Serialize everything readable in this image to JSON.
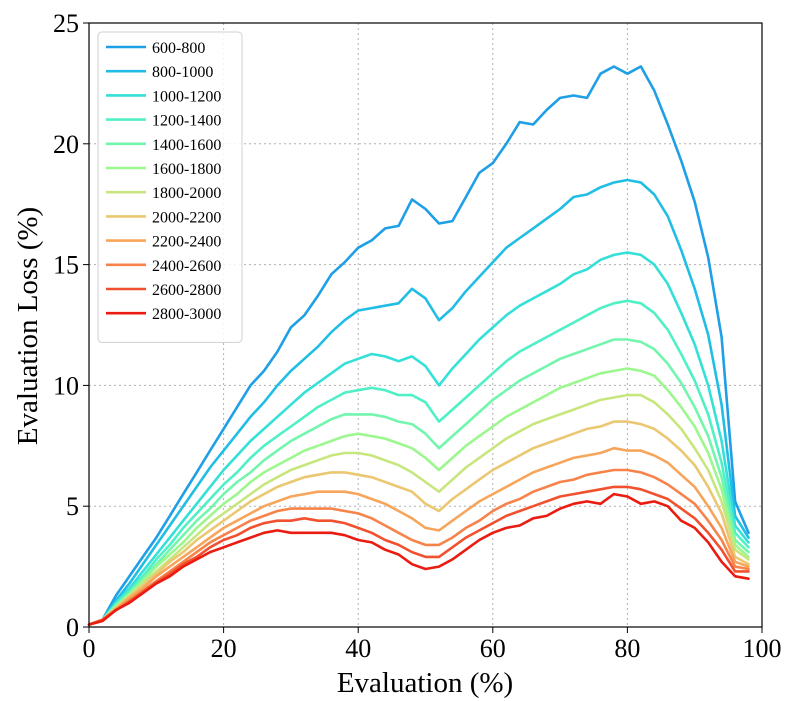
{
  "chart_data": {
    "type": "line",
    "xlabel": "Evaluation (%)",
    "ylabel": "Evaluation Loss (%)",
    "xlim": [
      0,
      100
    ],
    "ylim": [
      0,
      25
    ],
    "xticks": [
      0,
      20,
      40,
      60,
      80,
      100
    ],
    "yticks": [
      0,
      5,
      10,
      15,
      20,
      25
    ],
    "grid": true,
    "legend_position": "top-left",
    "x": [
      0,
      2,
      4,
      6,
      8,
      10,
      12,
      14,
      16,
      18,
      20,
      22,
      24,
      26,
      28,
      30,
      32,
      34,
      36,
      38,
      40,
      42,
      44,
      46,
      48,
      50,
      52,
      54,
      56,
      58,
      60,
      62,
      64,
      66,
      68,
      70,
      72,
      74,
      76,
      78,
      80,
      82,
      84,
      86,
      88,
      90,
      92,
      94,
      96,
      98
    ],
    "series": [
      {
        "name": "600-800",
        "color": "#1e9fe6",
        "values": [
          0.1,
          0.3,
          1.3,
          2.1,
          2.9,
          3.7,
          4.6,
          5.5,
          6.4,
          7.3,
          8.2,
          9.1,
          10.0,
          10.6,
          11.4,
          12.4,
          12.9,
          13.7,
          14.6,
          15.1,
          15.7,
          16.0,
          16.5,
          16.6,
          17.7,
          17.3,
          16.7,
          16.8,
          17.8,
          18.8,
          19.2,
          20.0,
          20.9,
          20.8,
          21.4,
          21.9,
          22.0,
          21.9,
          22.9,
          23.2,
          22.9,
          23.2,
          22.2,
          20.8,
          19.3,
          17.6,
          15.3,
          12.0,
          5.2,
          3.9
        ]
      },
      {
        "name": "800-1000",
        "color": "#20bee4",
        "values": [
          0.1,
          0.3,
          1.1,
          1.8,
          2.6,
          3.4,
          4.2,
          5.0,
          5.8,
          6.6,
          7.3,
          8.0,
          8.7,
          9.3,
          10.0,
          10.6,
          11.1,
          11.6,
          12.2,
          12.7,
          13.1,
          13.2,
          13.3,
          13.4,
          14.0,
          13.6,
          12.7,
          13.2,
          13.9,
          14.5,
          15.1,
          15.7,
          16.1,
          16.5,
          16.9,
          17.3,
          17.8,
          17.9,
          18.2,
          18.4,
          18.5,
          18.4,
          17.9,
          17.0,
          15.6,
          14.0,
          12.1,
          9.2,
          4.6,
          3.7
        ]
      },
      {
        "name": "1000-1200",
        "color": "#34e0d8",
        "values": [
          0.1,
          0.3,
          1.0,
          1.6,
          2.3,
          3.0,
          3.7,
          4.4,
          5.1,
          5.8,
          6.5,
          7.1,
          7.7,
          8.2,
          8.7,
          9.2,
          9.7,
          10.1,
          10.5,
          10.9,
          11.1,
          11.3,
          11.2,
          11.0,
          11.2,
          10.8,
          10.0,
          10.7,
          11.3,
          11.9,
          12.4,
          12.9,
          13.3,
          13.6,
          13.9,
          14.2,
          14.6,
          14.8,
          15.2,
          15.4,
          15.5,
          15.4,
          15.0,
          14.2,
          13.0,
          11.7,
          10.0,
          7.7,
          4.2,
          3.5
        ]
      },
      {
        "name": "1200-1400",
        "color": "#50f0c6",
        "values": [
          0.1,
          0.3,
          0.95,
          1.5,
          2.1,
          2.8,
          3.4,
          4.1,
          4.7,
          5.3,
          5.9,
          6.4,
          7.0,
          7.5,
          7.9,
          8.3,
          8.7,
          9.1,
          9.4,
          9.7,
          9.8,
          9.9,
          9.8,
          9.6,
          9.6,
          9.3,
          8.5,
          9.0,
          9.5,
          10.0,
          10.5,
          11.0,
          11.4,
          11.7,
          12.0,
          12.3,
          12.6,
          12.9,
          13.2,
          13.4,
          13.5,
          13.4,
          13.0,
          12.3,
          11.3,
          10.2,
          8.8,
          6.8,
          3.9,
          3.3
        ]
      },
      {
        "name": "1400-1600",
        "color": "#72f6ad",
        "values": [
          0.1,
          0.3,
          0.9,
          1.4,
          2.0,
          2.6,
          3.2,
          3.8,
          4.4,
          4.9,
          5.5,
          6.0,
          6.4,
          6.9,
          7.3,
          7.7,
          8.0,
          8.3,
          8.6,
          8.8,
          8.8,
          8.8,
          8.7,
          8.5,
          8.4,
          8.0,
          7.4,
          7.9,
          8.4,
          8.9,
          9.4,
          9.8,
          10.2,
          10.5,
          10.8,
          11.1,
          11.3,
          11.5,
          11.7,
          11.9,
          11.9,
          11.8,
          11.5,
          10.9,
          10.1,
          9.1,
          7.9,
          6.2,
          3.6,
          3.1
        ]
      },
      {
        "name": "1600-1800",
        "color": "#9cf78f",
        "values": [
          0.1,
          0.3,
          0.85,
          1.35,
          1.9,
          2.5,
          3.0,
          3.5,
          4.1,
          4.6,
          5.1,
          5.5,
          6.0,
          6.4,
          6.7,
          7.0,
          7.3,
          7.5,
          7.7,
          7.9,
          8.0,
          7.9,
          7.8,
          7.6,
          7.4,
          7.0,
          6.5,
          7.0,
          7.5,
          7.9,
          8.3,
          8.7,
          9.0,
          9.3,
          9.6,
          9.9,
          10.1,
          10.3,
          10.5,
          10.6,
          10.7,
          10.6,
          10.4,
          9.8,
          9.1,
          8.3,
          7.2,
          5.7,
          3.4,
          2.9
        ]
      },
      {
        "name": "1800-2000",
        "color": "#c8e67e",
        "values": [
          0.1,
          0.3,
          0.8,
          1.3,
          1.8,
          2.3,
          2.8,
          3.3,
          3.8,
          4.3,
          4.7,
          5.1,
          5.5,
          5.9,
          6.2,
          6.5,
          6.7,
          6.9,
          7.1,
          7.2,
          7.2,
          7.1,
          6.9,
          6.7,
          6.4,
          6.0,
          5.6,
          6.1,
          6.6,
          7.0,
          7.4,
          7.8,
          8.1,
          8.4,
          8.6,
          8.8,
          9.0,
          9.2,
          9.4,
          9.5,
          9.6,
          9.6,
          9.3,
          8.8,
          8.2,
          7.4,
          6.5,
          5.2,
          3.2,
          2.8
        ]
      },
      {
        "name": "2000-2200",
        "color": "#ebc771",
        "values": [
          0.1,
          0.3,
          0.8,
          1.25,
          1.7,
          2.2,
          2.7,
          3.1,
          3.6,
          4.0,
          4.4,
          4.8,
          5.2,
          5.5,
          5.8,
          6.0,
          6.2,
          6.3,
          6.4,
          6.4,
          6.3,
          6.2,
          6.0,
          5.8,
          5.6,
          5.1,
          4.8,
          5.3,
          5.7,
          6.1,
          6.5,
          6.8,
          7.1,
          7.4,
          7.6,
          7.8,
          8.0,
          8.2,
          8.3,
          8.5,
          8.5,
          8.4,
          8.2,
          7.8,
          7.3,
          6.7,
          5.8,
          4.7,
          2.9,
          2.6
        ]
      },
      {
        "name": "2200-2400",
        "color": "#f7a55b",
        "values": [
          0.1,
          0.3,
          0.75,
          1.2,
          1.6,
          2.1,
          2.5,
          2.9,
          3.3,
          3.7,
          4.1,
          4.4,
          4.7,
          5.0,
          5.2,
          5.4,
          5.5,
          5.6,
          5.6,
          5.6,
          5.5,
          5.3,
          5.1,
          4.8,
          4.5,
          4.1,
          4.0,
          4.4,
          4.8,
          5.2,
          5.5,
          5.8,
          6.1,
          6.4,
          6.6,
          6.8,
          7.0,
          7.1,
          7.2,
          7.4,
          7.3,
          7.3,
          7.1,
          6.8,
          6.3,
          5.8,
          5.0,
          4.1,
          2.7,
          2.5
        ]
      },
      {
        "name": "2400-2600",
        "color": "#f7834a",
        "values": [
          0.1,
          0.3,
          0.7,
          1.1,
          1.5,
          1.9,
          2.3,
          2.7,
          3.1,
          3.5,
          3.8,
          4.1,
          4.4,
          4.6,
          4.8,
          4.9,
          4.9,
          4.9,
          4.9,
          4.8,
          4.7,
          4.5,
          4.2,
          3.9,
          3.6,
          3.4,
          3.4,
          3.7,
          4.1,
          4.4,
          4.8,
          5.1,
          5.3,
          5.6,
          5.8,
          6.0,
          6.1,
          6.3,
          6.4,
          6.5,
          6.5,
          6.4,
          6.2,
          5.9,
          5.5,
          5.1,
          4.4,
          3.6,
          2.5,
          2.4
        ]
      },
      {
        "name": "2600-2800",
        "color": "#f2512f",
        "values": [
          0.1,
          0.3,
          0.7,
          1.05,
          1.45,
          1.85,
          2.2,
          2.6,
          2.9,
          3.3,
          3.6,
          3.8,
          4.1,
          4.3,
          4.4,
          4.4,
          4.5,
          4.4,
          4.4,
          4.3,
          4.1,
          3.9,
          3.6,
          3.4,
          3.1,
          2.9,
          2.9,
          3.3,
          3.7,
          4.0,
          4.3,
          4.6,
          4.8,
          5.0,
          5.2,
          5.4,
          5.5,
          5.6,
          5.7,
          5.8,
          5.8,
          5.7,
          5.5,
          5.3,
          4.9,
          4.5,
          3.9,
          3.2,
          2.3,
          2.3
        ]
      },
      {
        "name": "2800-3000",
        "color": "#ea1b10",
        "values": [
          0.1,
          0.25,
          0.7,
          1.0,
          1.4,
          1.8,
          2.1,
          2.5,
          2.8,
          3.1,
          3.3,
          3.5,
          3.7,
          3.9,
          4.0,
          3.9,
          3.9,
          3.9,
          3.9,
          3.8,
          3.6,
          3.5,
          3.2,
          3.0,
          2.6,
          2.4,
          2.5,
          2.8,
          3.2,
          3.6,
          3.9,
          4.1,
          4.2,
          4.5,
          4.6,
          4.9,
          5.1,
          5.2,
          5.1,
          5.5,
          5.4,
          5.1,
          5.2,
          5.0,
          4.4,
          4.1,
          3.5,
          2.7,
          2.1,
          2.0
        ]
      }
    ]
  }
}
